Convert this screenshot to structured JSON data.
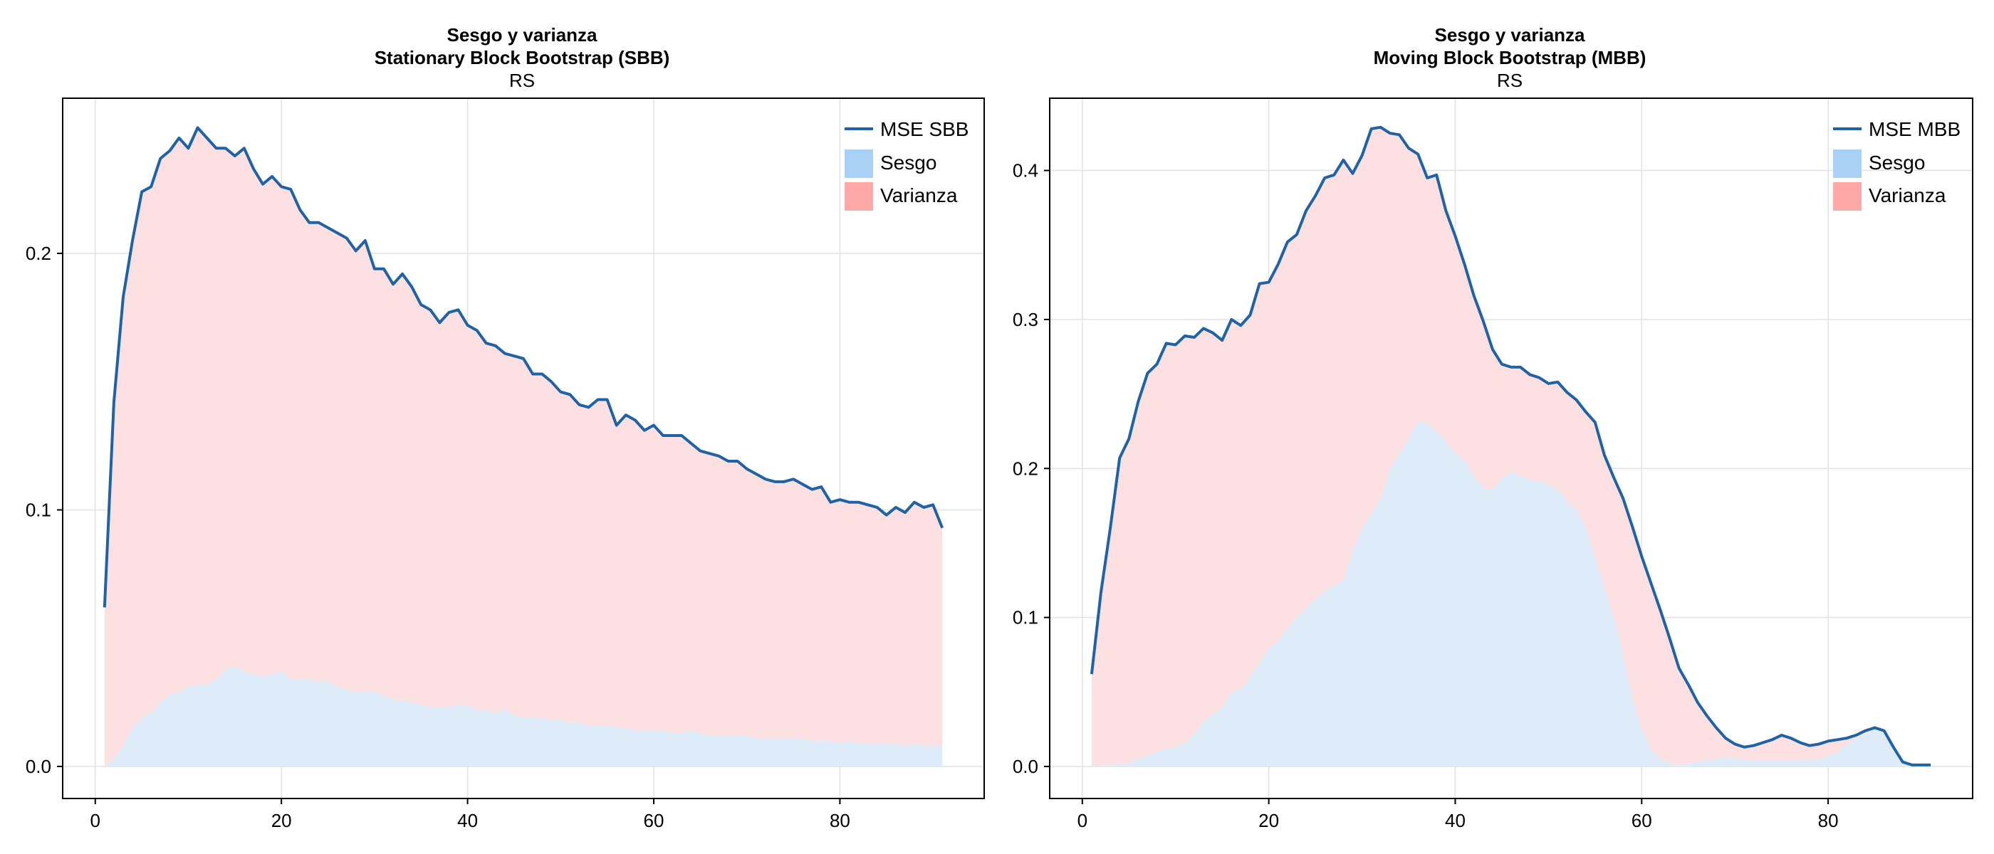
{
  "colors": {
    "mse": "#1f63a6",
    "sesgo_fill": "#deebf9",
    "varianza_fill": "#fde0e2",
    "sesgo_legend": "#a9d0f5",
    "varianza_legend": "#ffa8a8",
    "grid": "#e2e2e2"
  },
  "chart_data": [
    {
      "type": "area",
      "title": "Sesgo y varianza",
      "subtitle": "Stationary Block Bootstrap (SBB)",
      "caption": "RS",
      "xlim": [
        -3.5,
        95.5
      ],
      "ylim": [
        -0.0125,
        0.2605
      ],
      "xticks": [
        0,
        20,
        40,
        60,
        80
      ],
      "yticks": [
        0.0,
        0.1,
        0.2
      ],
      "ytick_labels": [
        "0.0",
        "0.1",
        "0.2"
      ],
      "grid": true,
      "legend_position": "top-right",
      "legend": [
        "MSE SBB",
        "Sesgo",
        "Varianza"
      ],
      "x": [
        1,
        2,
        3,
        4,
        5,
        6,
        7,
        8,
        9,
        10,
        11,
        12,
        13,
        14,
        15,
        16,
        17,
        18,
        19,
        20,
        21,
        22,
        23,
        24,
        25,
        26,
        27,
        28,
        29,
        30,
        31,
        32,
        33,
        34,
        35,
        36,
        37,
        38,
        39,
        40,
        41,
        42,
        43,
        44,
        45,
        46,
        47,
        48,
        49,
        50,
        51,
        52,
        53,
        54,
        55,
        56,
        57,
        58,
        59,
        60,
        61,
        62,
        63,
        64,
        65,
        66,
        67,
        68,
        69,
        70,
        71,
        72,
        73,
        74,
        75,
        76,
        77,
        78,
        79,
        80,
        81,
        82,
        83,
        84,
        85,
        86,
        87,
        88,
        89,
        90,
        91
      ],
      "series": [
        {
          "name": "MSE SBB",
          "style": "line",
          "values": [
            0.062,
            0.142,
            0.183,
            0.205,
            0.224,
            0.226,
            0.237,
            0.24,
            0.245,
            0.241,
            0.249,
            0.245,
            0.241,
            0.241,
            0.238,
            0.241,
            0.233,
            0.227,
            0.23,
            0.226,
            0.225,
            0.217,
            0.212,
            0.212,
            0.21,
            0.208,
            0.206,
            0.201,
            0.205,
            0.194,
            0.194,
            0.188,
            0.192,
            0.187,
            0.18,
            0.178,
            0.173,
            0.177,
            0.178,
            0.172,
            0.17,
            0.165,
            0.164,
            0.161,
            0.16,
            0.159,
            0.153,
            0.153,
            0.15,
            0.146,
            0.145,
            0.141,
            0.14,
            0.143,
            0.143,
            0.133,
            0.137,
            0.135,
            0.131,
            0.133,
            0.129,
            0.129,
            0.129,
            0.126,
            0.123,
            0.122,
            0.121,
            0.119,
            0.119,
            0.116,
            0.114,
            0.112,
            0.111,
            0.111,
            0.112,
            0.11,
            0.108,
            0.109,
            0.103,
            0.104,
            0.103,
            0.103,
            0.102,
            0.101,
            0.098,
            0.101,
            0.099,
            0.103,
            0.101,
            0.102,
            0.093
          ]
        },
        {
          "name": "Sesgo",
          "style": "area",
          "values": [
            0.0,
            0.003,
            0.008,
            0.015,
            0.019,
            0.021,
            0.025,
            0.028,
            0.029,
            0.031,
            0.032,
            0.032,
            0.034,
            0.038,
            0.039,
            0.037,
            0.036,
            0.035,
            0.036,
            0.037,
            0.034,
            0.034,
            0.034,
            0.033,
            0.033,
            0.031,
            0.03,
            0.029,
            0.029,
            0.029,
            0.028,
            0.026,
            0.026,
            0.025,
            0.024,
            0.023,
            0.023,
            0.023,
            0.024,
            0.024,
            0.022,
            0.022,
            0.021,
            0.022,
            0.02,
            0.019,
            0.019,
            0.019,
            0.018,
            0.018,
            0.017,
            0.017,
            0.016,
            0.016,
            0.016,
            0.015,
            0.015,
            0.014,
            0.014,
            0.014,
            0.014,
            0.013,
            0.013,
            0.014,
            0.013,
            0.012,
            0.012,
            0.012,
            0.012,
            0.012,
            0.011,
            0.011,
            0.011,
            0.011,
            0.011,
            0.011,
            0.01,
            0.01,
            0.01,
            0.009,
            0.01,
            0.009,
            0.009,
            0.009,
            0.009,
            0.009,
            0.008,
            0.009,
            0.008,
            0.008,
            0.008
          ]
        },
        {
          "name": "Varianza",
          "style": "stacked-area"
        }
      ]
    },
    {
      "type": "area",
      "title": "Sesgo y varianza",
      "subtitle": "Moving Block Bootstrap (MBB)",
      "caption": "RS",
      "xlim": [
        -3.5,
        95.5
      ],
      "ylim": [
        -0.0215,
        0.4485
      ],
      "xticks": [
        0,
        20,
        40,
        60,
        80
      ],
      "yticks": [
        0.0,
        0.1,
        0.2,
        0.3,
        0.4
      ],
      "ytick_labels": [
        "0.0",
        "0.1",
        "0.2",
        "0.3",
        "0.4"
      ],
      "grid": true,
      "legend_position": "top-right",
      "legend": [
        "MSE MBB",
        "Sesgo",
        "Varianza"
      ],
      "x": [
        1,
        2,
        3,
        4,
        5,
        6,
        7,
        8,
        9,
        10,
        11,
        12,
        13,
        14,
        15,
        16,
        17,
        18,
        19,
        20,
        21,
        22,
        23,
        24,
        25,
        26,
        27,
        28,
        29,
        30,
        31,
        32,
        33,
        34,
        35,
        36,
        37,
        38,
        39,
        40,
        41,
        42,
        43,
        44,
        45,
        46,
        47,
        48,
        49,
        50,
        51,
        52,
        53,
        54,
        55,
        56,
        57,
        58,
        59,
        60,
        61,
        62,
        63,
        64,
        65,
        66,
        67,
        68,
        69,
        70,
        71,
        72,
        73,
        74,
        75,
        76,
        77,
        78,
        79,
        80,
        81,
        82,
        83,
        84,
        85,
        86,
        87,
        88,
        89,
        90,
        91
      ],
      "series": [
        {
          "name": "MSE MBB",
          "style": "line",
          "values": [
            0.062,
            0.117,
            0.16,
            0.207,
            0.22,
            0.245,
            0.264,
            0.27,
            0.284,
            0.283,
            0.289,
            0.288,
            0.294,
            0.291,
            0.286,
            0.3,
            0.296,
            0.303,
            0.324,
            0.325,
            0.337,
            0.352,
            0.357,
            0.373,
            0.383,
            0.395,
            0.397,
            0.407,
            0.398,
            0.41,
            0.428,
            0.429,
            0.425,
            0.424,
            0.415,
            0.411,
            0.395,
            0.397,
            0.373,
            0.356,
            0.337,
            0.316,
            0.299,
            0.28,
            0.27,
            0.268,
            0.268,
            0.263,
            0.261,
            0.257,
            0.258,
            0.251,
            0.246,
            0.238,
            0.231,
            0.209,
            0.194,
            0.18,
            0.161,
            0.141,
            0.123,
            0.105,
            0.086,
            0.066,
            0.055,
            0.043,
            0.034,
            0.026,
            0.019,
            0.015,
            0.013,
            0.014,
            0.016,
            0.018,
            0.021,
            0.019,
            0.016,
            0.014,
            0.015,
            0.017,
            0.018,
            0.019,
            0.021,
            0.024,
            0.026,
            0.024,
            0.013,
            0.003,
            0.001,
            0.001,
            0.001
          ]
        },
        {
          "name": "Sesgo",
          "style": "area",
          "values": [
            0.0,
            0.001,
            0.001,
            0.002,
            0.002,
            0.005,
            0.007,
            0.01,
            0.012,
            0.013,
            0.016,
            0.022,
            0.03,
            0.035,
            0.04,
            0.05,
            0.052,
            0.06,
            0.07,
            0.079,
            0.085,
            0.093,
            0.1,
            0.107,
            0.112,
            0.118,
            0.121,
            0.125,
            0.145,
            0.16,
            0.17,
            0.18,
            0.2,
            0.21,
            0.22,
            0.232,
            0.23,
            0.225,
            0.218,
            0.21,
            0.205,
            0.195,
            0.186,
            0.186,
            0.193,
            0.198,
            0.195,
            0.192,
            0.192,
            0.189,
            0.186,
            0.178,
            0.172,
            0.16,
            0.14,
            0.12,
            0.1,
            0.075,
            0.045,
            0.025,
            0.012,
            0.005,
            0.002,
            0.001,
            0.002,
            0.003,
            0.004,
            0.005,
            0.006,
            0.006,
            0.005,
            0.004,
            0.004,
            0.004,
            0.004,
            0.004,
            0.004,
            0.004,
            0.005,
            0.007,
            0.01,
            0.015,
            0.019,
            0.022,
            0.025,
            0.023,
            0.012,
            0.002,
            0.0,
            0.0,
            0.0
          ]
        },
        {
          "name": "Varianza",
          "style": "stacked-area"
        }
      ]
    }
  ]
}
